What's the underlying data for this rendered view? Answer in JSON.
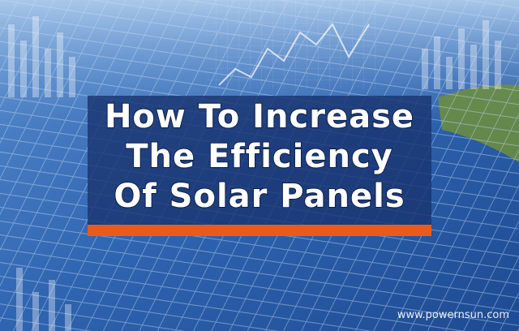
{
  "title": {
    "lines": [
      "How To Increase",
      "The Efficiency",
      "Of Solar Panels"
    ]
  },
  "watermark": "www.powernsun.com"
}
